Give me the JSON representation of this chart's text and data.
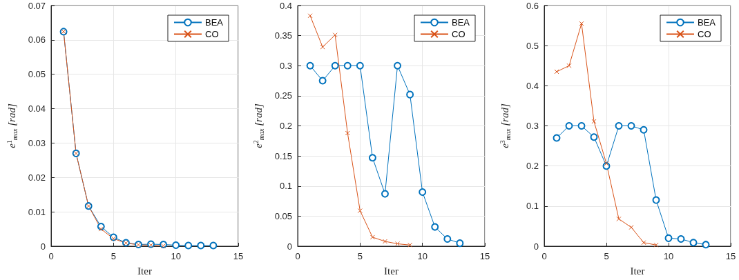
{
  "chart_data": [
    {
      "type": "line",
      "xlabel": "Iter",
      "ylabel": "e$^{1}$$_{max}$ [rad]",
      "xlim": [
        0,
        15
      ],
      "xticks": [
        0,
        5,
        10,
        15
      ],
      "ylim": [
        0,
        0.07
      ],
      "yticks": [
        0,
        0.01,
        0.02,
        0.03,
        0.04,
        0.05,
        0.06,
        0.07
      ],
      "grid": true,
      "legend": "top right",
      "line_style": "solid",
      "series": [
        {
          "name": "BEA",
          "color": "#0072bd",
          "marker": "circle",
          "x": [
            1,
            2,
            3,
            4,
            5,
            6,
            7,
            8,
            9,
            10,
            11,
            12,
            13
          ],
          "values": [
            0.0624,
            0.027,
            0.0117,
            0.0057,
            0.0026,
            0.001,
            0.0005,
            0.0006,
            0.0005,
            0.0003,
            0.0002,
            0.0002,
            0.0002
          ]
        },
        {
          "name": "CO",
          "color": "#d95319",
          "marker": "cross",
          "x": [
            1,
            2,
            3,
            4,
            5,
            6,
            7,
            8,
            9
          ],
          "values": [
            0.0624,
            0.027,
            0.0117,
            0.005,
            0.0022,
            0.0009,
            0.0004,
            0.0003,
            0.0001
          ]
        }
      ]
    },
    {
      "type": "line",
      "xlabel": "Iter",
      "ylabel": "e$^{2}$$_{max}$ [rad]",
      "xlim": [
        0,
        15
      ],
      "xticks": [
        0,
        5,
        10,
        15
      ],
      "ylim": [
        0,
        0.4
      ],
      "yticks": [
        0,
        0.05,
        0.1,
        0.15,
        0.2,
        0.25,
        0.3,
        0.35,
        0.4
      ],
      "grid": true,
      "legend": "top right",
      "line_style": "solid",
      "series": [
        {
          "name": "BEA",
          "color": "#0072bd",
          "marker": "circle",
          "x": [
            1,
            2,
            3,
            4,
            5,
            6,
            7,
            8,
            9,
            10,
            11,
            12,
            13
          ],
          "values": [
            0.3,
            0.275,
            0.3,
            0.3,
            0.3,
            0.147,
            0.087,
            0.3,
            0.252,
            0.09,
            0.032,
            0.012,
            0.005
          ]
        },
        {
          "name": "CO",
          "color": "#d95319",
          "marker": "cross",
          "x": [
            1,
            2,
            3,
            4,
            5,
            6,
            7,
            8,
            9
          ],
          "values": [
            0.383,
            0.331,
            0.351,
            0.188,
            0.059,
            0.015,
            0.008,
            0.004,
            0.002
          ]
        }
      ]
    },
    {
      "type": "line",
      "xlabel": "Iter",
      "ylabel": "e$^{3}$$_{max}$ [rad]",
      "xlim": [
        0,
        15
      ],
      "xticks": [
        0,
        5,
        10,
        15
      ],
      "ylim": [
        0,
        0.6
      ],
      "yticks": [
        0,
        0.1,
        0.2,
        0.3,
        0.4,
        0.5,
        0.6
      ],
      "grid": true,
      "legend": "top right",
      "line_style": "solid",
      "series": [
        {
          "name": "BEA",
          "color": "#0072bd",
          "marker": "circle",
          "x": [
            1,
            2,
            3,
            4,
            5,
            6,
            7,
            8,
            9,
            10,
            11,
            12,
            13
          ],
          "values": [
            0.27,
            0.3,
            0.3,
            0.272,
            0.2,
            0.3,
            0.3,
            0.29,
            0.115,
            0.02,
            0.018,
            0.009,
            0.004
          ]
        },
        {
          "name": "CO",
          "color": "#d95319",
          "marker": "cross",
          "x": [
            1,
            2,
            3,
            4,
            5,
            6,
            7,
            8,
            9
          ],
          "values": [
            0.435,
            0.45,
            0.555,
            0.311,
            0.206,
            0.068,
            0.047,
            0.009,
            0.003
          ]
        }
      ]
    }
  ]
}
